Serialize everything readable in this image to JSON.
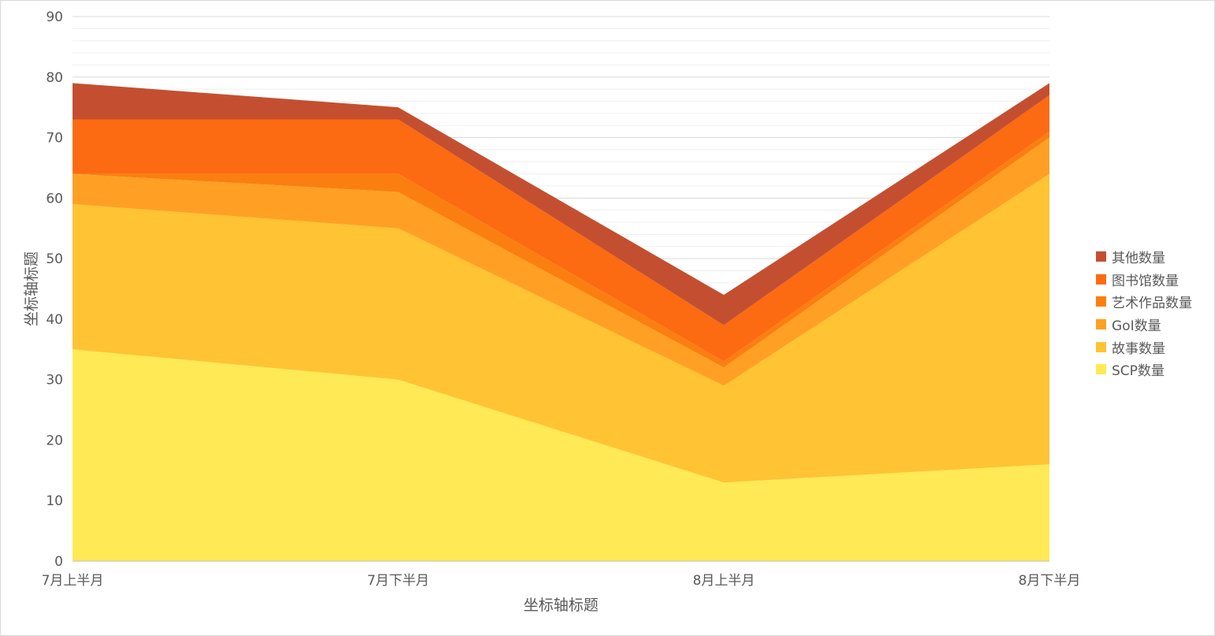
{
  "chart_data": {
    "type": "area",
    "stacked": true,
    "categories": [
      "7月上半月",
      "7月下半月",
      "8月上半月",
      "8月下半月"
    ],
    "series": [
      {
        "name": "SCP数量",
        "color": "#FFE955",
        "values": [
          35,
          30,
          13,
          16
        ]
      },
      {
        "name": "故事数量",
        "color": "#FFC333",
        "values": [
          24,
          25,
          16,
          48
        ]
      },
      {
        "name": "GoI数量",
        "color": "#FFA024",
        "values": [
          5,
          6,
          3,
          6
        ]
      },
      {
        "name": "艺术作品数量",
        "color": "#FB7F10",
        "values": [
          0,
          3,
          1,
          1
        ]
      },
      {
        "name": "图书馆数量",
        "color": "#FC6B11",
        "values": [
          9,
          9,
          6,
          6
        ]
      },
      {
        "name": "其他数量",
        "color": "#C44F30",
        "values": [
          6,
          2,
          5,
          2
        ]
      }
    ],
    "xlabel": "坐标轴标题",
    "ylabel": "坐标轴标题",
    "ylim": [
      0,
      90
    ],
    "yticks": [
      0,
      10,
      20,
      30,
      40,
      50,
      60,
      70,
      80,
      90
    ],
    "grid": true,
    "legend_position": "right"
  }
}
